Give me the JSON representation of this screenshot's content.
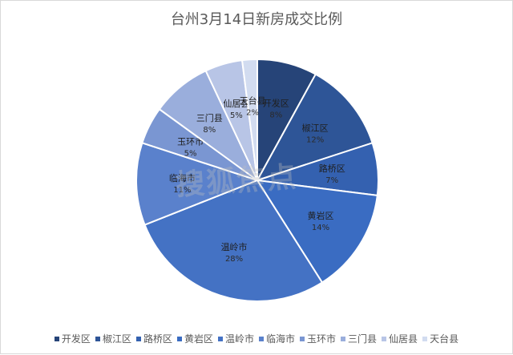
{
  "chart_data": {
    "type": "pie",
    "title": "台州3月14日新房成交比例",
    "start_angle_deg": 0,
    "direction": "clockwise",
    "slices": [
      {
        "name": "开发区",
        "value": 8,
        "label": "8%",
        "color": "#264478"
      },
      {
        "name": "椒江区",
        "value": 12,
        "label": "12%",
        "color": "#2E5597"
      },
      {
        "name": "路桥区",
        "value": 7,
        "label": "7%",
        "color": "#3461B0"
      },
      {
        "name": "黄岩区",
        "value": 14,
        "label": "14%",
        "color": "#3A6CC2"
      },
      {
        "name": "温岭市",
        "value": 28,
        "label": "28%",
        "color": "#4472C4"
      },
      {
        "name": "临海市",
        "value": 11,
        "label": "11%",
        "color": "#5A81CC"
      },
      {
        "name": "玉环市",
        "value": 5,
        "label": "5%",
        "color": "#7A96D2"
      },
      {
        "name": "三门县",
        "value": 8,
        "label": "8%",
        "color": "#9AAEDC"
      },
      {
        "name": "仙居县",
        "value": 5,
        "label": "5%",
        "color": "#B8C5E6"
      },
      {
        "name": "天台县",
        "value": 2,
        "label": "2%",
        "color": "#D2DCF0"
      }
    ],
    "legend_position": "bottom"
  },
  "watermark": "搜狐焦点"
}
